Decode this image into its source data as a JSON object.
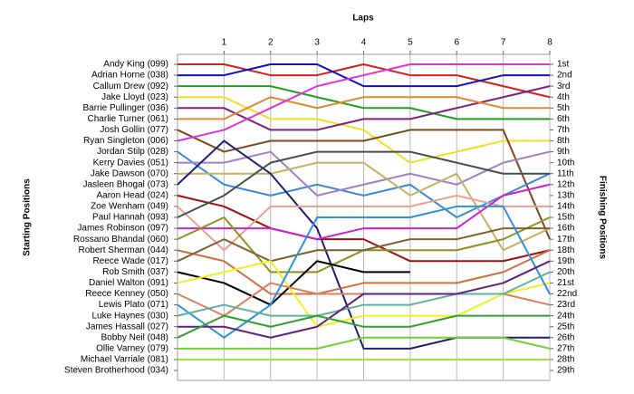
{
  "chart_data": {
    "type": "line",
    "x_label": "Laps",
    "y_label": "Starting Positions",
    "y2_label": "Finishing Positions",
    "x": [
      0,
      1,
      2,
      3,
      4,
      5,
      6,
      7,
      8
    ],
    "xlim": [
      0,
      8
    ],
    "xticks": [
      1,
      2,
      3,
      4,
      5,
      6,
      7,
      8
    ],
    "ylim": [
      1,
      29
    ],
    "y_reversed": true,
    "yticks": [
      {
        "value": 1,
        "label": "1st"
      },
      {
        "value": 2,
        "label": "2nd"
      },
      {
        "value": 3,
        "label": "3rd"
      },
      {
        "value": 4,
        "label": "4th"
      },
      {
        "value": 5,
        "label": "5th"
      },
      {
        "value": 6,
        "label": "6th"
      },
      {
        "value": 7,
        "label": "7th"
      },
      {
        "value": 8,
        "label": "8th"
      },
      {
        "value": 9,
        "label": "9th"
      },
      {
        "value": 10,
        "label": "10th"
      },
      {
        "value": 11,
        "label": "11th"
      },
      {
        "value": 12,
        "label": "12th"
      },
      {
        "value": 13,
        "label": "13th"
      },
      {
        "value": 14,
        "label": "14th"
      },
      {
        "value": 15,
        "label": "15th"
      },
      {
        "value": 16,
        "label": "16th"
      },
      {
        "value": 17,
        "label": "17th"
      },
      {
        "value": 18,
        "label": "18th"
      },
      {
        "value": 19,
        "label": "19th"
      },
      {
        "value": 20,
        "label": "20th"
      },
      {
        "value": 21,
        "label": "21st"
      },
      {
        "value": 22,
        "label": "22nd"
      },
      {
        "value": 23,
        "label": "23rd"
      },
      {
        "value": 24,
        "label": "24th"
      },
      {
        "value": 25,
        "label": "25th"
      },
      {
        "value": 26,
        "label": "26th"
      },
      {
        "value": 27,
        "label": "27th"
      },
      {
        "value": 28,
        "label": "28th"
      },
      {
        "value": 29,
        "label": "29th"
      }
    ],
    "grid": true,
    "series": [
      {
        "name": "Andy King (099)",
        "color": "#d62020",
        "values": [
          1,
          1,
          2,
          2,
          1,
          2,
          2,
          3,
          4
        ]
      },
      {
        "name": "Adrian Horne (038)",
        "color": "#1010c0",
        "values": [
          2,
          2,
          1,
          1,
          3,
          3,
          3,
          2,
          2
        ]
      },
      {
        "name": "Callum Drew (092)",
        "color": "#20a020",
        "values": [
          3,
          3,
          3,
          4,
          5,
          5,
          6,
          6,
          6
        ]
      },
      {
        "name": "Jake Lloyd (023)",
        "color": "#f0e020",
        "values": [
          4,
          4,
          6,
          6,
          7,
          10,
          9,
          8,
          8
        ]
      },
      {
        "name": "Barrie Pullinger (036)",
        "color": "#802080",
        "values": [
          5,
          5,
          7,
          7,
          6,
          6,
          5,
          4,
          3
        ]
      },
      {
        "name": "Charlie Turner (061)",
        "color": "#e08a30",
        "values": [
          6,
          6,
          4,
          5,
          4,
          4,
          4,
          5,
          5
        ]
      },
      {
        "name": "Josh Gollin (077)",
        "color": "#7a4a1a",
        "values": [
          7,
          9,
          8,
          8,
          8,
          7,
          7,
          7,
          17
        ]
      },
      {
        "name": "Ryan Singleton (006)",
        "color": "#e030e0",
        "values": [
          8,
          7,
          5,
          3,
          2,
          1,
          1,
          1,
          1
        ]
      },
      {
        "name": "Jordan Stilp (028)",
        "color": "#3a8ad8",
        "values": [
          9,
          12,
          13,
          12,
          13,
          12,
          15,
          13,
          11
        ]
      },
      {
        "name": "Kerry Davies (051)",
        "color": "#a080c0",
        "values": [
          10,
          10,
          9,
          13,
          12,
          11,
          12,
          10,
          9
        ]
      },
      {
        "name": "Jake Dawson (070)",
        "color": "#c8b060",
        "values": [
          11,
          11,
          11,
          10,
          10,
          13,
          11,
          18,
          16
        ]
      },
      {
        "name": "Jasleen Bhogal (073)",
        "color": "#202070",
        "values": [
          12,
          8,
          11,
          16,
          27,
          27,
          26,
          26,
          26
        ]
      },
      {
        "name": "Aaron Head (024)",
        "color": "#a01010",
        "values": [
          13,
          14,
          16,
          17,
          17,
          19,
          19,
          19,
          18
        ]
      },
      {
        "name": "Zoe Wenham (049)",
        "color": "#e8a090",
        "values": [
          14,
          18,
          14,
          14,
          14,
          14,
          13,
          14,
          14
        ]
      },
      {
        "name": "Paul Hannah (093)",
        "color": "#405050",
        "values": [
          15,
          13,
          10,
          9,
          9,
          9,
          10,
          11,
          11
        ]
      },
      {
        "name": "James Robinson (097)",
        "color": "#d020d0",
        "values": [
          16,
          16,
          16,
          17,
          16,
          16,
          16,
          13,
          12
        ]
      },
      {
        "name": "Rossano Bhandal (060)",
        "color": "#909020",
        "values": [
          17,
          15,
          20,
          20,
          18,
          18,
          18,
          17,
          15
        ]
      },
      {
        "name": "Robert Sherman (044)",
        "color": "#d07040",
        "values": [
          18,
          19,
          22,
          22,
          21,
          21,
          21,
          20,
          18
        ]
      },
      {
        "name": "Reece Wade (017)",
        "color": "#806030",
        "values": [
          19,
          17,
          19,
          18,
          18,
          17,
          17,
          16,
          16
        ]
      },
      {
        "name": "Rob Smith (037)",
        "color": "#000000",
        "values": [
          20,
          21,
          23,
          19,
          20,
          20,
          null,
          null,
          null
        ]
      },
      {
        "name": "Daniel Walton (091)",
        "color": "#f0f020",
        "values": [
          21,
          20,
          19,
          25,
          24,
          24,
          24,
          22,
          21
        ]
      },
      {
        "name": "Reece Kenney (050)",
        "color": "#d88060",
        "values": [
          22,
          24,
          21,
          22,
          22,
          22,
          22,
          22,
          23
        ]
      },
      {
        "name": "Lewis Plato (071)",
        "color": "#3090e0",
        "values": [
          23,
          26,
          23,
          15,
          15,
          15,
          14,
          14,
          22
        ]
      },
      {
        "name": "Luke Haynes (030)",
        "color": "#60b0a0",
        "values": [
          24,
          23,
          24,
          24,
          23,
          23,
          22,
          22,
          20
        ]
      },
      {
        "name": "James Hassall (027)",
        "color": "#602080",
        "values": [
          25,
          25,
          26,
          25,
          22,
          22,
          22,
          21,
          19
        ]
      },
      {
        "name": "Bobby Neil (048)",
        "color": "#30a030",
        "values": [
          26,
          24,
          25,
          24,
          25,
          25,
          24,
          24,
          24
        ]
      },
      {
        "name": "Ollie Varney (079)",
        "color": "#70d030",
        "values": [
          27,
          27,
          27,
          27,
          26,
          26,
          26,
          26,
          27
        ]
      },
      {
        "name": "Michael Varriale (081)",
        "color": "#a0e040",
        "values": [
          28,
          28,
          28,
          28,
          28,
          28,
          28,
          28,
          28
        ]
      },
      {
        "name": "Steven Brotherhood (034)",
        "color": "#b0b0b0",
        "values": [
          29,
          null,
          null,
          null,
          null,
          null,
          null,
          null,
          null
        ]
      }
    ]
  }
}
